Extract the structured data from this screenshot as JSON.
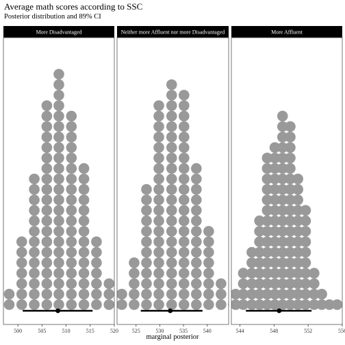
{
  "title": "Average math scores according to SSC",
  "subtitle": "Posterior distribution and 89% CI",
  "colors": {
    "dots": "#999999",
    "interval": "#000000",
    "strip": "#000000",
    "strip_text": "#ffffff",
    "panel_border": "#555555"
  },
  "chart_data": {
    "type": "dotplot",
    "title": "Average math scores according to SSC",
    "subtitle": "Posterior distribution and 89% CI",
    "xlabel": "marginal posterior",
    "ylabel": "",
    "grid": false,
    "facets": [
      {
        "label": "More Disadvantaged",
        "xlim": [
          497,
          520
        ],
        "ticks": [
          500,
          505,
          510,
          515,
          520
        ],
        "bins": [
          {
            "x": 498.2,
            "count": 2
          },
          {
            "x": 500.8,
            "count": 7
          },
          {
            "x": 503.4,
            "count": 13
          },
          {
            "x": 506.0,
            "count": 20
          },
          {
            "x": 508.5,
            "count": 23
          },
          {
            "x": 511.1,
            "count": 19
          },
          {
            "x": 513.7,
            "count": 14
          },
          {
            "x": 516.3,
            "count": 7
          },
          {
            "x": 518.9,
            "count": 3
          },
          {
            "x": 521.5,
            "count": 1
          }
        ],
        "median": 508.3,
        "ci_89": [
          501.0,
          515.5
        ]
      },
      {
        "label": "Neither more Affluent nor more Disadvantaged",
        "xlim": [
          521,
          544.5
        ],
        "ticks": [
          525,
          530,
          535,
          540
        ],
        "bins": [
          {
            "x": 522.0,
            "count": 2
          },
          {
            "x": 524.6,
            "count": 5
          },
          {
            "x": 527.2,
            "count": 12
          },
          {
            "x": 529.8,
            "count": 20
          },
          {
            "x": 532.5,
            "count": 22
          },
          {
            "x": 535.1,
            "count": 21
          },
          {
            "x": 537.7,
            "count": 14
          },
          {
            "x": 540.3,
            "count": 8
          },
          {
            "x": 542.9,
            "count": 3
          },
          {
            "x": 545.5,
            "count": 1
          }
        ],
        "median": 532.2,
        "ci_89": [
          526.0,
          539.0
        ]
      },
      {
        "label": "More Affluent",
        "xlim": [
          543,
          556
        ],
        "ticks": [
          544,
          548,
          552,
          556
        ],
        "bins": [
          {
            "x": 543.5,
            "count": 2
          },
          {
            "x": 544.4,
            "count": 4
          },
          {
            "x": 545.4,
            "count": 6
          },
          {
            "x": 546.3,
            "count": 9
          },
          {
            "x": 547.2,
            "count": 15
          },
          {
            "x": 548.1,
            "count": 16
          },
          {
            "x": 549.0,
            "count": 19
          },
          {
            "x": 549.9,
            "count": 18
          },
          {
            "x": 550.8,
            "count": 13
          },
          {
            "x": 551.7,
            "count": 10
          },
          {
            "x": 552.7,
            "count": 4
          },
          {
            "x": 553.6,
            "count": 2
          },
          {
            "x": 554.5,
            "count": 1
          },
          {
            "x": 555.4,
            "count": 1
          }
        ],
        "median": 548.6,
        "ci_89": [
          544.7,
          552.4
        ]
      }
    ]
  }
}
